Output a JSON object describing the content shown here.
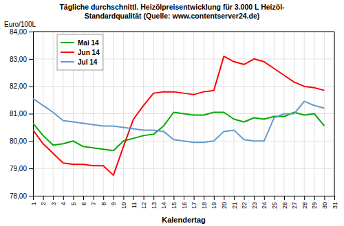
{
  "chart_data": {
    "type": "line",
    "title": "Tägliche durchschnittl. Heizölpreisentwicklung für 3.000 L Heizöl-\nStandardqualität (Quelle: www.contentserver24.de)",
    "xlabel": "Kalendertag",
    "ylabel": "Euro/100L",
    "x": [
      1,
      2,
      3,
      4,
      5,
      6,
      7,
      8,
      9,
      10,
      11,
      12,
      13,
      14,
      15,
      16,
      17,
      18,
      19,
      20,
      21,
      22,
      23,
      24,
      25,
      26,
      27,
      28,
      29,
      30,
      31
    ],
    "series": [
      {
        "name": "Mai 14",
        "color": "#00AA00",
        "values": [
          80.65,
          80.2,
          79.85,
          79.9,
          80.0,
          79.8,
          79.75,
          79.7,
          79.65,
          80.0,
          80.1,
          80.2,
          80.25,
          80.55,
          81.05,
          81.0,
          80.95,
          80.95,
          81.05,
          81.05,
          80.8,
          80.7,
          80.85,
          80.8,
          80.9,
          80.9,
          81.05,
          80.95,
          81.0,
          80.55,
          null
        ]
      },
      {
        "name": "Jun 14",
        "color": "#FF0000",
        "values": [
          80.4,
          79.9,
          79.55,
          79.2,
          79.15,
          79.15,
          79.1,
          79.1,
          78.75,
          79.8,
          80.8,
          81.3,
          81.75,
          81.8,
          81.8,
          81.75,
          81.7,
          81.8,
          81.85,
          83.1,
          82.9,
          82.8,
          83.0,
          82.9,
          82.65,
          82.4,
          82.15,
          82.0,
          81.95,
          81.85,
          null
        ]
      },
      {
        "name": "Jul 14",
        "color": "#6699CC",
        "values": [
          81.55,
          81.3,
          81.05,
          80.75,
          80.7,
          80.65,
          80.6,
          80.55,
          80.55,
          80.5,
          80.45,
          80.4,
          80.4,
          80.35,
          80.05,
          80.0,
          79.95,
          79.95,
          80.0,
          80.35,
          80.4,
          80.05,
          80.0,
          80.0,
          80.85,
          81.0,
          81.0,
          81.45,
          81.3,
          81.2,
          null
        ]
      }
    ],
    "xlim": [
      1,
      31
    ],
    "xticks": [
      1,
      2,
      3,
      4,
      5,
      6,
      7,
      8,
      9,
      10,
      11,
      12,
      13,
      14,
      15,
      16,
      17,
      18,
      19,
      20,
      21,
      22,
      23,
      24,
      25,
      26,
      27,
      28,
      29,
      30,
      31
    ],
    "ylim": [
      78.0,
      84.0
    ],
    "yticks": [
      {
        "value": 78.0,
        "label": "78,00"
      },
      {
        "value": 79.0,
        "label": "79,00"
      },
      {
        "value": 80.0,
        "label": "80,00"
      },
      {
        "value": 81.0,
        "label": "81,00"
      },
      {
        "value": 82.0,
        "label": "82,00"
      },
      {
        "value": 83.0,
        "label": "83,00"
      },
      {
        "value": 84.0,
        "label": "84,00"
      }
    ],
    "grid": true,
    "legend": "upper left"
  }
}
